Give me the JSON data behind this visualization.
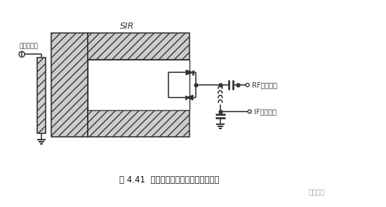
{
  "title": "图 4.41  单个平衡混频器的基本电路结构",
  "label_lo": "本机振荡器",
  "label_sir": "SIR",
  "label_rf": "RF（输入）",
  "label_if": "IF（输出）",
  "bg_color": "#ffffff",
  "line_color": "#333333",
  "watermark": "奋斗范儿"
}
